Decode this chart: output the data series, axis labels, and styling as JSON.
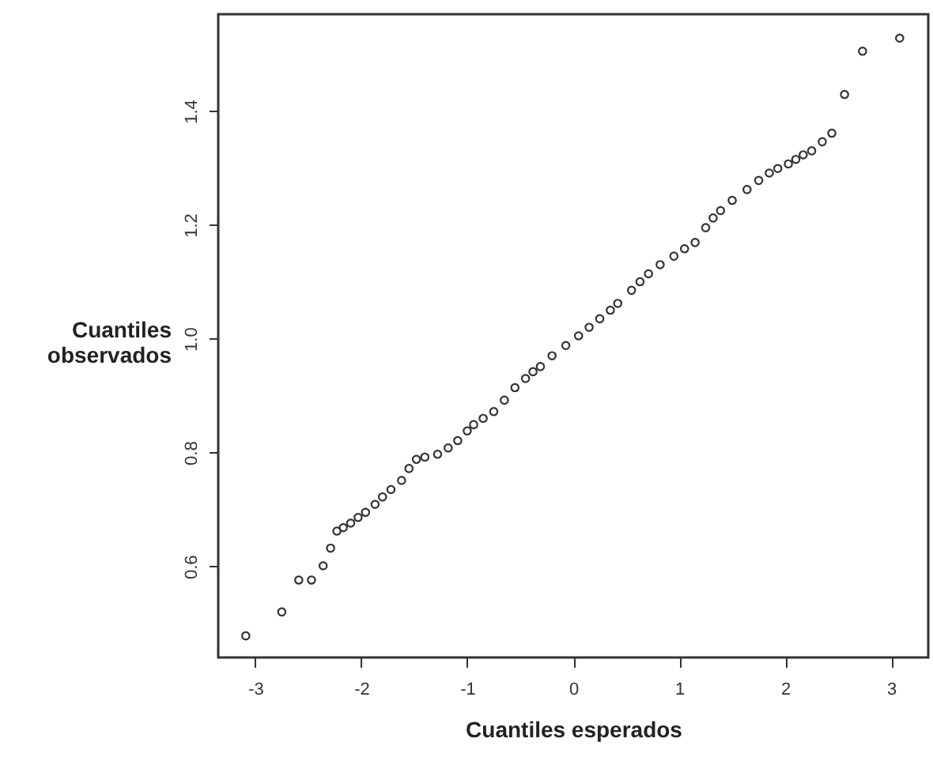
{
  "chart_data": {
    "type": "scatter",
    "xlabel": "Cuantiles esperados",
    "ylabel": "Cuantiles observados",
    "marker": "circle",
    "grid": false,
    "xlim": [
      -3.35,
      3.35
    ],
    "xticks": [
      -3,
      -2,
      -1,
      0,
      1,
      2,
      3
    ],
    "ylim": [
      0.44,
      1.57
    ],
    "yticks": [
      0.6,
      0.8,
      {
        "value": 1,
        "label": "1.0"
      },
      1.2,
      1.4
    ],
    "series": [
      {
        "color": "#333333",
        "x": [
          -3.09,
          -2.75,
          -2.59,
          -2.47,
          -2.36,
          -2.29,
          -2.23,
          -2.17,
          -2.1,
          -2.03,
          -1.96,
          -1.87,
          -1.8,
          -1.72,
          -1.62,
          -1.55,
          -1.48,
          -1.4,
          -1.28,
          -1.18,
          -1.09,
          -1.0,
          -0.94,
          -0.85,
          -0.75,
          -0.65,
          -0.55,
          -0.45,
          -0.38,
          -0.31,
          -0.2,
          -0.07,
          0.05,
          0.15,
          0.25,
          0.35,
          0.42,
          0.55,
          0.63,
          0.71,
          0.82,
          0.95,
          1.05,
          1.15,
          1.25,
          1.32,
          1.39,
          1.5,
          1.64,
          1.75,
          1.85,
          1.93,
          2.03,
          2.1,
          2.17,
          2.25,
          2.35,
          2.44,
          2.56,
          2.73,
          3.08
        ],
        "values": [
          0.478,
          0.52,
          0.576,
          0.576,
          0.601,
          0.632,
          0.662,
          0.668,
          0.676,
          0.686,
          0.695,
          0.709,
          0.722,
          0.735,
          0.751,
          0.772,
          0.788,
          0.792,
          0.797,
          0.808,
          0.821,
          0.838,
          0.849,
          0.86,
          0.872,
          0.892,
          0.914,
          0.93,
          0.942,
          0.951,
          0.97,
          0.988,
          1.005,
          1.02,
          1.035,
          1.05,
          1.062,
          1.085,
          1.1,
          1.114,
          1.13,
          1.145,
          1.158,
          1.169,
          1.195,
          1.212,
          1.225,
          1.243,
          1.262,
          1.278,
          1.291,
          1.299,
          1.307,
          1.315,
          1.323,
          1.33,
          1.346,
          1.361,
          1.429,
          1.505,
          1.528
        ]
      }
    ]
  }
}
